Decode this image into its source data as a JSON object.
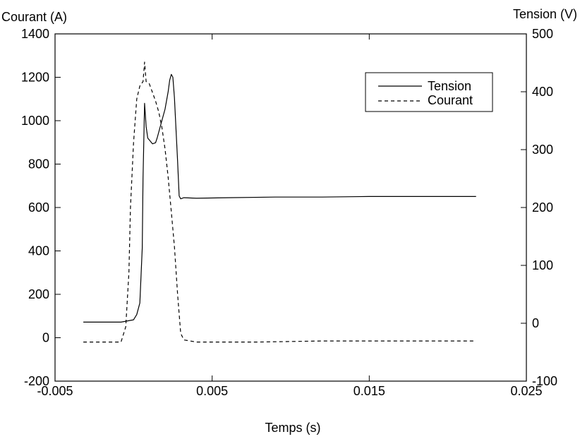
{
  "chart_data": {
    "type": "line",
    "xlabel": "Temps (s)",
    "ylabel_left": "Courant (A)",
    "ylabel_right": "Tension (V)",
    "xlim": [
      -0.005,
      0.025
    ],
    "ylim_left": [
      -200,
      1400
    ],
    "ylim_right": [
      -100,
      500
    ],
    "x_ticks": [
      -0.005,
      0.005,
      0.015,
      0.025
    ],
    "x_tick_labels": [
      "-0.005",
      "0.005",
      "0.015",
      "0.025"
    ],
    "y_left_ticks": [
      -200,
      0,
      200,
      400,
      600,
      800,
      1000,
      1200,
      1400
    ],
    "y_left_tick_labels": [
      "-200",
      "0",
      "200",
      "400",
      "600",
      "800",
      "1000",
      "1200",
      "1400"
    ],
    "y_right_ticks": [
      -100,
      0,
      100,
      200,
      300,
      400,
      500
    ],
    "y_right_tick_labels": [
      "-100",
      "0",
      "100",
      "200",
      "300",
      "400",
      "500"
    ],
    "legend_position": "top-right",
    "grid": false,
    "series": [
      {
        "name": "Tension",
        "axis": "right",
        "style": "solid",
        "x": [
          -0.0032,
          -0.0012,
          -0.0008,
          0.0,
          0.0002,
          0.0004,
          0.00055,
          0.0006,
          0.0007,
          0.0008,
          0.0009,
          0.0012,
          0.0014,
          0.0015,
          0.0018,
          0.002,
          0.0022,
          0.0023,
          0.0024,
          0.0025,
          0.0026,
          0.0028,
          0.0029,
          0.003,
          0.0032,
          0.004,
          0.006,
          0.009,
          0.012,
          0.015,
          0.018,
          0.021,
          0.0218
        ],
        "y": [
          2,
          2,
          2,
          6,
          15,
          35,
          130,
          250,
          380,
          340,
          320,
          310,
          312,
          320,
          350,
          370,
          400,
          420,
          430,
          425,
          390,
          280,
          220,
          215,
          217,
          216,
          217,
          218,
          218,
          219,
          219,
          219,
          219
        ]
      },
      {
        "name": "Courant",
        "axis": "left",
        "style": "dashed",
        "x": [
          -0.0032,
          -0.0008,
          -0.0005,
          -0.0003,
          -0.0002,
          0.0,
          0.0002,
          0.0004,
          0.0006,
          0.0007,
          0.0008,
          0.001,
          0.0012,
          0.0014,
          0.0016,
          0.0018,
          0.002,
          0.0022,
          0.0024,
          0.0026,
          0.0028,
          0.003,
          0.0032,
          0.004,
          0.008,
          0.012,
          0.016,
          0.02,
          0.0218
        ],
        "y": [
          -20,
          -20,
          50,
          300,
          600,
          900,
          1100,
          1160,
          1180,
          1270,
          1180,
          1170,
          1130,
          1090,
          1040,
          970,
          870,
          740,
          580,
          420,
          200,
          20,
          -10,
          -20,
          -20,
          -15,
          -15,
          -15,
          -15
        ]
      }
    ]
  }
}
